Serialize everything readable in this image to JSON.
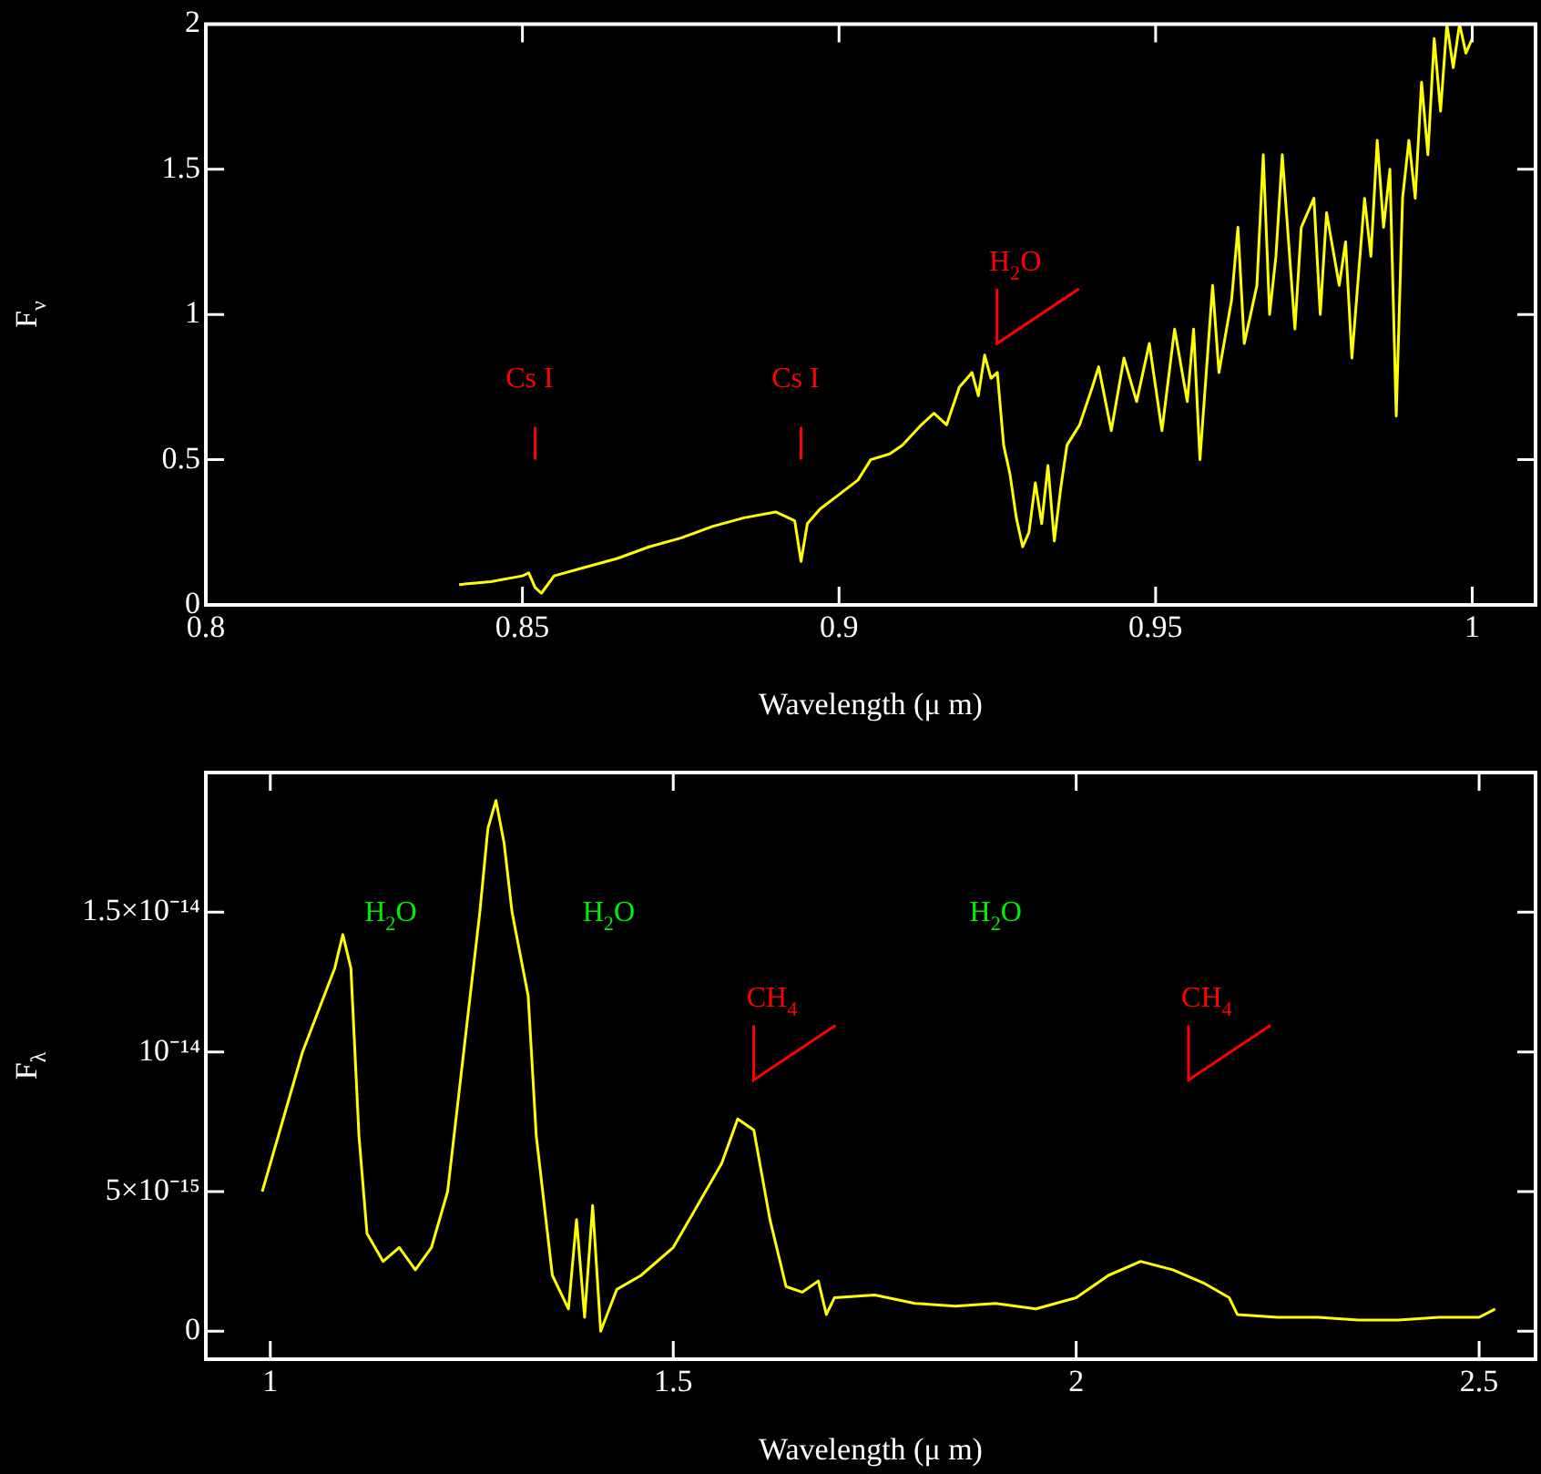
{
  "chart_data": [
    {
      "type": "line",
      "xlabel": "Wavelength (μ m)",
      "ylabel": "F$_{ν}$",
      "xlim": [
        0.8,
        1.01
      ],
      "ylim": [
        0,
        2
      ],
      "xticks": [
        0.8,
        0.85,
        0.9,
        0.95,
        1
      ],
      "yticks": [
        0,
        0.5,
        1,
        1.5,
        2
      ],
      "grid": false,
      "legend": false,
      "marker": "none",
      "line_style": "solid",
      "annotations": [
        "Cs I",
        "Cs I",
        "H$_{2}$O"
      ],
      "series": [
        {
          "color": "#ffff00",
          "x": [
            0.84,
            0.845,
            0.85,
            0.851,
            0.852,
            0.853,
            0.855,
            0.86,
            0.865,
            0.87,
            0.875,
            0.88,
            0.885,
            0.89,
            0.892,
            0.893,
            0.894,
            0.895,
            0.897,
            0.9,
            0.903,
            0.905,
            0.908,
            0.91,
            0.913,
            0.915,
            0.917,
            0.919,
            0.921,
            0.922,
            0.923,
            0.924,
            0.925,
            0.926,
            0.927,
            0.928,
            0.929,
            0.93,
            0.931,
            0.932,
            0.933,
            0.934,
            0.935,
            0.936,
            0.938,
            0.94,
            0.941,
            0.943,
            0.945,
            0.947,
            0.949,
            0.951,
            0.953,
            0.955,
            0.956,
            0.957,
            0.959,
            0.96,
            0.962,
            0.963,
            0.964,
            0.966,
            0.967,
            0.968,
            0.969,
            0.97,
            0.972,
            0.973,
            0.975,
            0.976,
            0.977,
            0.979,
            0.98,
            0.981,
            0.983,
            0.984,
            0.985,
            0.986,
            0.987,
            0.988,
            0.989,
            0.99,
            0.991,
            0.992,
            0.993,
            0.994,
            0.995,
            0.996,
            0.997,
            0.998,
            0.999,
            1.0
          ],
          "values": [
            0.07,
            0.08,
            0.1,
            0.11,
            0.06,
            0.04,
            0.1,
            0.13,
            0.16,
            0.2,
            0.23,
            0.27,
            0.3,
            0.32,
            0.3,
            0.29,
            0.15,
            0.28,
            0.33,
            0.38,
            0.43,
            0.5,
            0.52,
            0.55,
            0.62,
            0.66,
            0.62,
            0.75,
            0.8,
            0.72,
            0.86,
            0.78,
            0.8,
            0.55,
            0.45,
            0.3,
            0.2,
            0.25,
            0.42,
            0.28,
            0.48,
            0.22,
            0.4,
            0.55,
            0.62,
            0.75,
            0.82,
            0.6,
            0.85,
            0.7,
            0.9,
            0.6,
            0.95,
            0.7,
            0.95,
            0.5,
            1.1,
            0.8,
            1.05,
            1.3,
            0.9,
            1.1,
            1.55,
            1.0,
            1.2,
            1.55,
            0.95,
            1.3,
            1.4,
            1.0,
            1.35,
            1.1,
            1.25,
            0.85,
            1.4,
            1.2,
            1.6,
            1.3,
            1.5,
            0.65,
            1.4,
            1.6,
            1.4,
            1.8,
            1.55,
            1.95,
            1.7,
            2.0,
            1.85,
            2.0,
            1.9,
            1.95
          ]
        }
      ]
    },
    {
      "type": "line",
      "xlabel": "Wavelength (μ m)",
      "ylabel": "F$_{λ}$",
      "xlim": [
        0.92,
        2.57
      ],
      "ylim": [
        -1e-15,
        2e-14
      ],
      "xticks": [
        1,
        1.5,
        2,
        2.5
      ],
      "yticks": [
        0,
        {
          "value": 5e-15,
          "label": "5×10⁻¹⁵"
        },
        {
          "value": 1e-14,
          "label": "10⁻¹⁴"
        },
        {
          "value": 1.5e-14,
          "label": "1.5×10⁻¹⁴"
        }
      ],
      "grid": false,
      "legend": false,
      "marker": "none",
      "line_style": "solid",
      "annotations": [
        "H$_{2}$O",
        "H$_{2}$O",
        "H$_{2}$O",
        "CH$_{4}$",
        "CH$_{4}$"
      ],
      "series": [
        {
          "color": "#ffff00",
          "x": [
            0.99,
            1.0,
            1.02,
            1.04,
            1.06,
            1.08,
            1.09,
            1.1,
            1.11,
            1.12,
            1.14,
            1.16,
            1.18,
            1.2,
            1.22,
            1.24,
            1.26,
            1.27,
            1.28,
            1.29,
            1.3,
            1.32,
            1.33,
            1.35,
            1.37,
            1.38,
            1.39,
            1.4,
            1.41,
            1.43,
            1.46,
            1.5,
            1.53,
            1.56,
            1.58,
            1.6,
            1.62,
            1.64,
            1.66,
            1.68,
            1.69,
            1.7,
            1.75,
            1.8,
            1.85,
            1.9,
            1.95,
            2.0,
            2.04,
            2.08,
            2.12,
            2.16,
            2.19,
            2.2,
            2.25,
            2.3,
            2.35,
            2.4,
            2.45,
            2.5,
            2.52
          ],
          "values": [
            5e-15,
            6e-15,
            8e-15,
            1e-14,
            1.15e-14,
            1.3e-14,
            1.42e-14,
            1.3e-14,
            7e-15,
            3.5e-15,
            2.5e-15,
            3e-15,
            2.2e-15,
            3e-15,
            5e-15,
            1e-14,
            1.5e-14,
            1.8e-14,
            1.9e-14,
            1.75e-14,
            1.5e-14,
            1.2e-14,
            7e-15,
            2e-15,
            8e-16,
            4e-15,
            5e-16,
            4.5e-15,
            0,
            1.5e-15,
            2e-15,
            3e-15,
            4.5e-15,
            6e-15,
            7.6e-15,
            7.2e-15,
            4e-15,
            1.6e-15,
            1.4e-15,
            1.8e-15,
            6e-16,
            1.2e-15,
            1.3e-15,
            1e-15,
            9e-16,
            1e-15,
            8e-16,
            1.2e-15,
            2e-15,
            2.5e-15,
            2.2e-15,
            1.7e-15,
            1.2e-15,
            6e-16,
            5e-16,
            5e-16,
            4e-16,
            4e-16,
            5e-16,
            5e-16,
            8e-16
          ]
        }
      ]
    }
  ]
}
